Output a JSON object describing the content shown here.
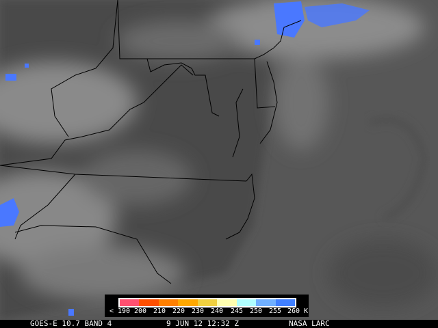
{
  "caption": {
    "satellite": "GOES-E 10.7 BAND 4",
    "datetime": "9 JUN 12 12:32 Z",
    "credit": "NASA LARC"
  },
  "legend": {
    "colors": [
      "#ff5070",
      "#ff5000",
      "#ff8000",
      "#ffa800",
      "#f0d040",
      "#ffffb0",
      "#b0ffff",
      "#70b0ff",
      "#4080ff"
    ],
    "ticks": [
      "< 190",
      "200",
      "210",
      "220",
      "230",
      "240",
      "245",
      "250",
      "255",
      "260 K"
    ]
  },
  "map": {
    "type": "infrared satellite image",
    "cold_cloud_color": "#4a78ff",
    "land_color": "#4a4a4a",
    "ocean_color": "#5a5a5a"
  }
}
